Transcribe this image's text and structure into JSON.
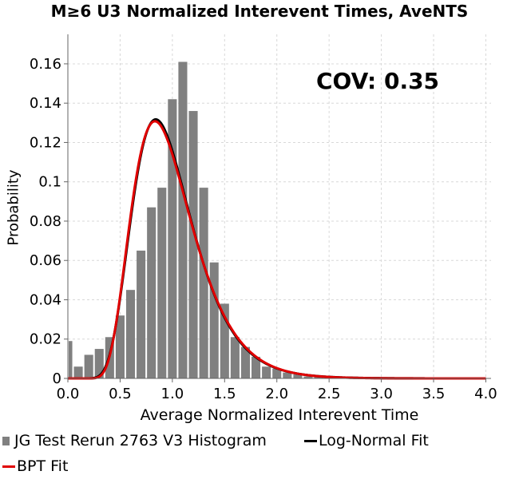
{
  "chart_data": {
    "type": "bar",
    "title": "M≥6 U3 Normalized Interevent Times, AveNTS",
    "xlabel": "Average Normalized Interevent Time",
    "ylabel": "Probability",
    "xlim": [
      0.0,
      4.05
    ],
    "ylim": [
      0,
      0.175
    ],
    "xticks": [
      "0.0",
      "0.5",
      "1.0",
      "1.5",
      "2.0",
      "2.5",
      "3.0",
      "3.5",
      "4.0"
    ],
    "yticks": [
      "0",
      "0.02",
      "0.04",
      "0.06",
      "0.08",
      "0.1",
      "0.12",
      "0.14",
      "0.16"
    ],
    "grid": true,
    "annotation": "COV: 0.35",
    "histogram": {
      "name": "JG Test Rerun 2763 V3 Histogram",
      "color": "#808080",
      "bin_width": 0.1,
      "bin_centers": [
        0.0,
        0.1,
        0.2,
        0.3,
        0.4,
        0.5,
        0.6,
        0.7,
        0.8,
        0.9,
        1.0,
        1.1,
        1.2,
        1.3,
        1.4,
        1.5,
        1.6,
        1.7,
        1.8,
        1.9,
        2.0,
        2.1,
        2.2,
        2.3,
        2.4,
        2.5
      ],
      "values": [
        0.019,
        0.006,
        0.012,
        0.015,
        0.021,
        0.032,
        0.045,
        0.065,
        0.087,
        0.097,
        0.142,
        0.161,
        0.136,
        0.097,
        0.059,
        0.038,
        0.021,
        0.016,
        0.011,
        0.006,
        0.005,
        0.003,
        0.002,
        0.001,
        0.001,
        0.0005
      ]
    },
    "series": [
      {
        "name": "Log-Normal Fit",
        "color": "#000000",
        "distribution": "lognormal",
        "mean": 1.0,
        "cov": 0.35
      },
      {
        "name": "BPT Fit",
        "color": "#e00000",
        "distribution": "bpt",
        "mean": 1.0,
        "cov": 0.35
      }
    ],
    "legend": "bottom"
  }
}
